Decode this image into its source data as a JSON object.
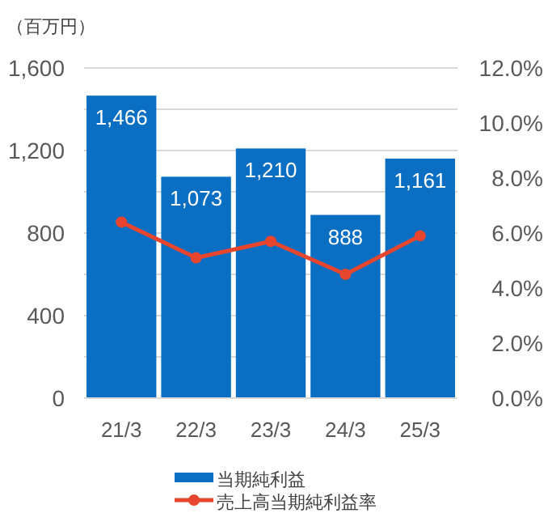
{
  "chart_data": {
    "type": "bar",
    "ylabel": "（百万円）",
    "categories": [
      "21/3",
      "22/3",
      "23/3",
      "24/3",
      "25/3"
    ],
    "series": [
      {
        "name": "当期純利益",
        "color": "#0a6fc2",
        "values": [
          1466,
          1073,
          1210,
          888,
          1161
        ],
        "value_labels": [
          "1,466",
          "1,073",
          "1,210",
          "888",
          "1,161"
        ]
      },
      {
        "name": "売上高当期純利益率",
        "type": "line",
        "axis": "y2",
        "color": "#e8452f",
        "values": [
          6.4,
          5.1,
          5.7,
          4.5,
          5.9
        ]
      }
    ],
    "ylim": [
      0,
      1600
    ],
    "yticks": [
      0,
      {
        "value": 200,
        "label": null
      },
      400,
      {
        "value": 600,
        "label": null
      },
      800,
      {
        "value": 1000,
        "label": null
      },
      {
        "value": 1200,
        "label": "1,200"
      },
      {
        "value": 1400,
        "label": null
      },
      {
        "value": 1600,
        "label": "1,600"
      }
    ],
    "y2lim": [
      0,
      12
    ],
    "y2ticks": [
      {
        "value": 0,
        "label": "0.0%"
      },
      {
        "value": 2,
        "label": "2.0%"
      },
      {
        "value": 4,
        "label": "4.0%"
      },
      {
        "value": 6,
        "label": "6.0%"
      },
      {
        "value": 8,
        "label": "8.0%"
      },
      {
        "value": 10,
        "label": "10.0%"
      },
      {
        "value": 12,
        "label": "12.0%"
      }
    ],
    "grid": "y",
    "marker": "circle",
    "legend": "bottom"
  }
}
